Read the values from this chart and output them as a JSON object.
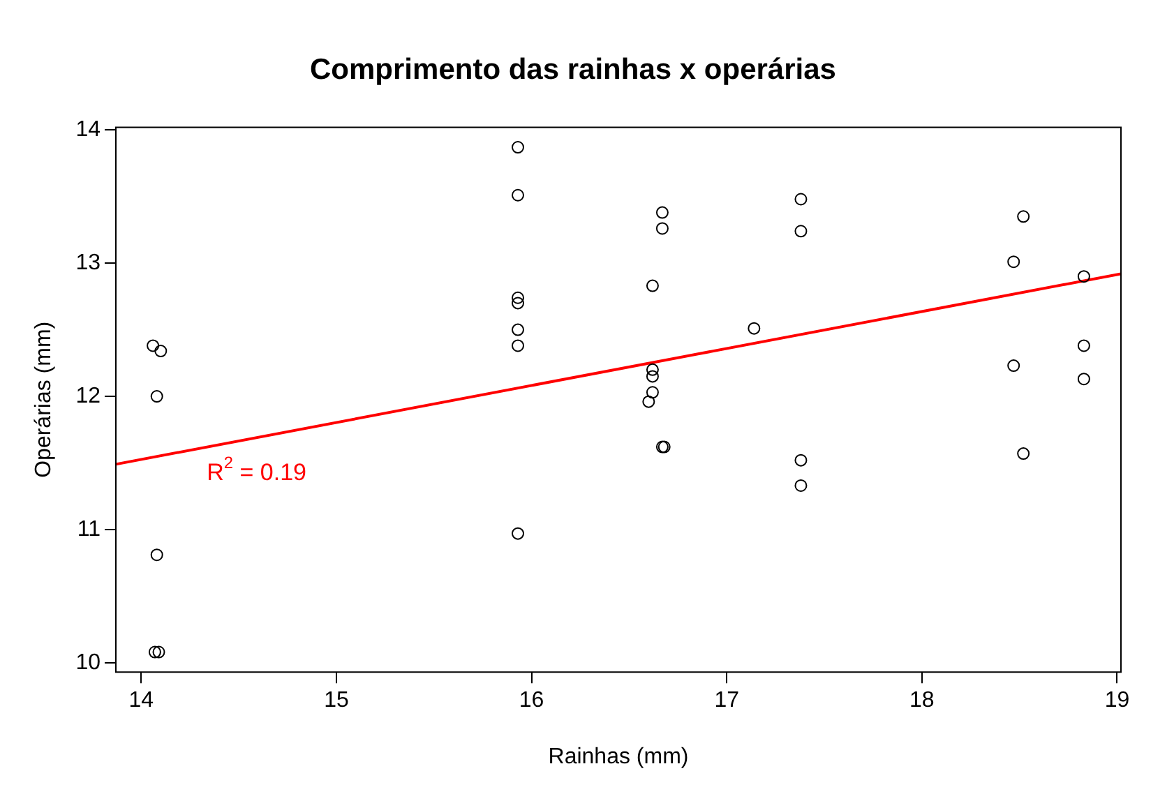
{
  "chart_data": {
    "type": "scatter",
    "title": "Comprimento das rainhas x operárias",
    "xlabel": "Rainhas (mm)",
    "ylabel": "Operárias (mm)",
    "xlim": [
      13.87,
      19.02
    ],
    "ylim": [
      9.93,
      14.02
    ],
    "xticks": [
      14,
      15,
      16,
      17,
      18,
      19
    ],
    "yticks": [
      10,
      11,
      12,
      13,
      14
    ],
    "grid": false,
    "series": [
      {
        "marker": "circle",
        "color": "#000000",
        "x": [
          14.06,
          14.1,
          14.08,
          14.08,
          14.07,
          14.09,
          15.93,
          15.93,
          15.93,
          15.93,
          15.93,
          15.93,
          15.93,
          16.67,
          16.67,
          16.67,
          16.68,
          16.62,
          16.62,
          16.62,
          16.62,
          16.6,
          17.14,
          17.38,
          17.38,
          17.38,
          17.38,
          18.52,
          18.52,
          18.47,
          18.47,
          18.83,
          18.83,
          18.83
        ],
        "values": [
          12.38,
          12.34,
          12.0,
          10.81,
          10.08,
          10.08,
          13.87,
          13.51,
          12.74,
          12.7,
          12.5,
          12.38,
          10.97,
          13.38,
          13.26,
          11.62,
          11.62,
          12.83,
          12.2,
          12.15,
          12.03,
          11.96,
          12.51,
          13.48,
          13.24,
          11.52,
          11.33,
          13.35,
          11.57,
          13.01,
          12.23,
          12.9,
          12.38,
          12.13
        ]
      },
      {
        "type": "line",
        "marker": "none",
        "color": "#ff0000",
        "x": [
          13.87,
          19.02
        ],
        "values": [
          11.49,
          12.92
        ]
      }
    ],
    "annotations": [
      "R$^{2}$ = 0.19"
    ]
  }
}
